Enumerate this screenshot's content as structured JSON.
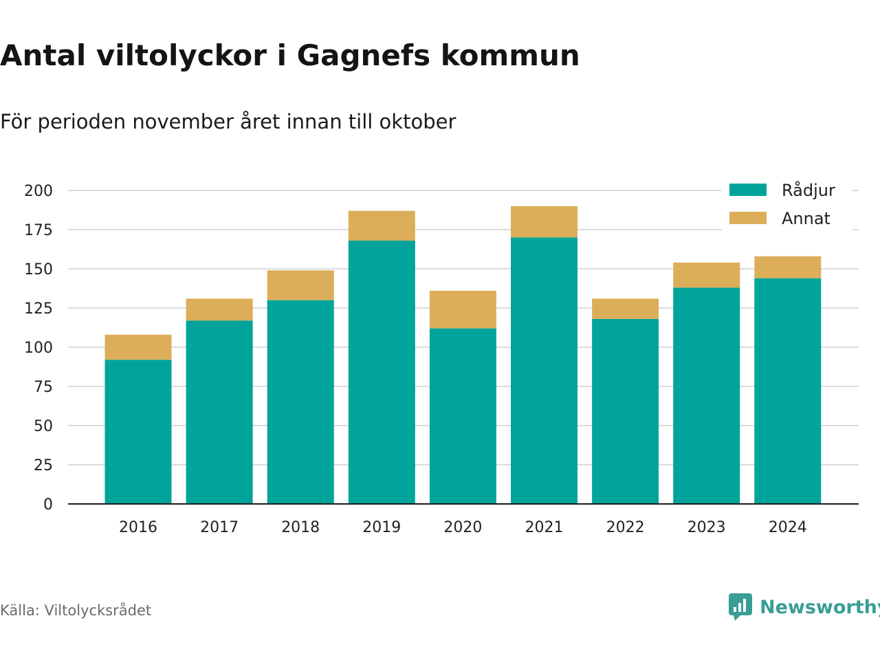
{
  "header": {
    "title": "Antal viltolyckor i Gagnefs kommun",
    "subtitle": "För perioden november året innan till oktober"
  },
  "footer": {
    "source": "Källa: Viltolycksrådet",
    "brand": "Newsworthy",
    "brand_icon": "bar-chart-icon"
  },
  "chart_data": {
    "type": "bar",
    "stacked": true,
    "categories": [
      "2016",
      "2017",
      "2018",
      "2019",
      "2020",
      "2021",
      "2022",
      "2023",
      "2024"
    ],
    "series": [
      {
        "name": "Rådjur",
        "color": "#00a49a",
        "values": [
          92,
          117,
          130,
          168,
          112,
          170,
          118,
          138,
          144
        ]
      },
      {
        "name": "Annat",
        "color": "#dcae5a",
        "values": [
          16,
          14,
          19,
          19,
          24,
          20,
          13,
          16,
          14
        ]
      }
    ],
    "yticks": [
      "0",
      "25",
      "50",
      "75",
      "100",
      "125",
      "150",
      "175",
      "200"
    ],
    "ylim": [
      0,
      200
    ],
    "grid": true,
    "legend_position": "top-right",
    "xlabel": "",
    "ylabel": ""
  }
}
